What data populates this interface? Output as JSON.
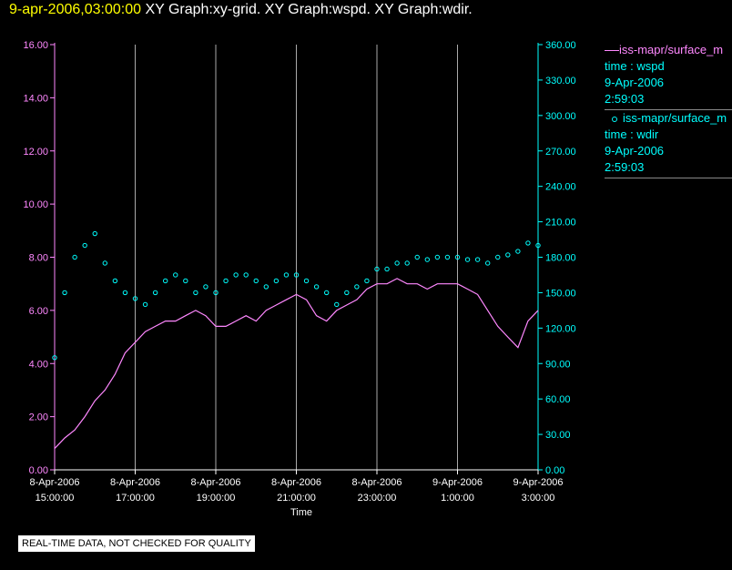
{
  "title": {
    "timestamp": "9-apr-2006,03:00:00",
    "graphs": "XY Graph:xy-grid.  XY Graph:wspd.  XY Graph:wdir."
  },
  "footer": "REAL-TIME DATA, NOT CHECKED FOR QUALITY",
  "legend": [
    {
      "series": "iss-mapr/surface_m",
      "field": "time : wspd",
      "date": "9-Apr-2006",
      "time": "2:59:03"
    },
    {
      "series": "iss-mapr/surface_m",
      "field": "time : wdir",
      "date": "9-Apr-2006",
      "time": "2:59:03"
    }
  ],
  "colors": {
    "wspd": "#ff88ff",
    "wdir": "#00ffff",
    "grid": "#aaaaaa",
    "left_axis": "#ff88ff",
    "right_axis": "#00ffff"
  },
  "chart_data": {
    "type": "line",
    "xlabel": "Time",
    "x_range_hours": [
      15,
      27
    ],
    "x_ticks": [
      {
        "h": 15,
        "date": "8-Apr-2006",
        "time": "15:00:00"
      },
      {
        "h": 17,
        "date": "8-Apr-2006",
        "time": "17:00:00"
      },
      {
        "h": 19,
        "date": "8-Apr-2006",
        "time": "19:00:00"
      },
      {
        "h": 21,
        "date": "8-Apr-2006",
        "time": "21:00:00"
      },
      {
        "h": 23,
        "date": "8-Apr-2006",
        "time": "23:00:00"
      },
      {
        "h": 25,
        "date": "9-Apr-2006",
        "time": "1:00:00"
      },
      {
        "h": 27,
        "date": "9-Apr-2006",
        "time": "3:00:00"
      }
    ],
    "y_left": {
      "range": [
        0,
        16
      ],
      "ticks": [
        "0.00",
        "2.00",
        "4.00",
        "6.00",
        "8.00",
        "10.00",
        "12.00",
        "14.00",
        "16.00"
      ]
    },
    "y_right": {
      "range": [
        0,
        360
      ],
      "ticks": [
        "0.00",
        "30.00",
        "60.00",
        "90.00",
        "120.00",
        "150.00",
        "180.00",
        "210.00",
        "240.00",
        "270.00",
        "300.00",
        "330.00",
        "360.00"
      ]
    },
    "grid": true,
    "series": [
      {
        "name": "time : wspd",
        "axis": "left",
        "style": "line",
        "x": [
          15.0,
          15.25,
          15.5,
          15.75,
          16.0,
          16.25,
          16.5,
          16.75,
          17.0,
          17.25,
          17.5,
          17.75,
          18.0,
          18.25,
          18.5,
          18.75,
          19.0,
          19.25,
          19.5,
          19.75,
          20.0,
          20.25,
          20.5,
          20.75,
          21.0,
          21.25,
          21.5,
          21.75,
          22.0,
          22.25,
          22.5,
          22.75,
          23.0,
          23.25,
          23.5,
          23.75,
          24.0,
          24.25,
          24.5,
          24.75,
          25.0,
          25.25,
          25.5,
          25.75,
          26.0,
          26.25,
          26.5,
          26.75,
          27.0
        ],
        "values": [
          0.8,
          1.2,
          1.5,
          2.0,
          2.6,
          3.0,
          3.6,
          4.4,
          4.8,
          5.2,
          5.4,
          5.6,
          5.6,
          5.8,
          6.0,
          5.8,
          5.4,
          5.4,
          5.6,
          5.8,
          5.6,
          6.0,
          6.2,
          6.4,
          6.6,
          6.4,
          5.8,
          5.6,
          6.0,
          6.2,
          6.4,
          6.8,
          7.0,
          7.0,
          7.2,
          7.0,
          7.0,
          6.8,
          7.0,
          7.0,
          7.0,
          6.8,
          6.6,
          6.0,
          5.4,
          5.0,
          4.6,
          5.6,
          6.0
        ]
      },
      {
        "name": "time : wdir",
        "axis": "right",
        "style": "markers",
        "x": [
          15.0,
          15.25,
          15.5,
          15.75,
          16.0,
          16.25,
          16.5,
          16.75,
          17.0,
          17.25,
          17.5,
          17.75,
          18.0,
          18.25,
          18.5,
          18.75,
          19.0,
          19.25,
          19.5,
          19.75,
          20.0,
          20.25,
          20.5,
          20.75,
          21.0,
          21.25,
          21.5,
          21.75,
          22.0,
          22.25,
          22.5,
          22.75,
          23.0,
          23.25,
          23.5,
          23.75,
          24.0,
          24.25,
          24.5,
          24.75,
          25.0,
          25.25,
          25.5,
          25.75,
          26.0,
          26.25,
          26.5,
          26.75,
          27.0
        ],
        "values": [
          95,
          150,
          180,
          190,
          200,
          175,
          160,
          150,
          145,
          140,
          150,
          160,
          165,
          160,
          150,
          155,
          150,
          160,
          165,
          165,
          160,
          155,
          160,
          165,
          165,
          160,
          155,
          150,
          140,
          150,
          155,
          160,
          170,
          170,
          175,
          175,
          180,
          178,
          180,
          180,
          180,
          178,
          178,
          175,
          180,
          182,
          185,
          192,
          190
        ]
      }
    ]
  }
}
